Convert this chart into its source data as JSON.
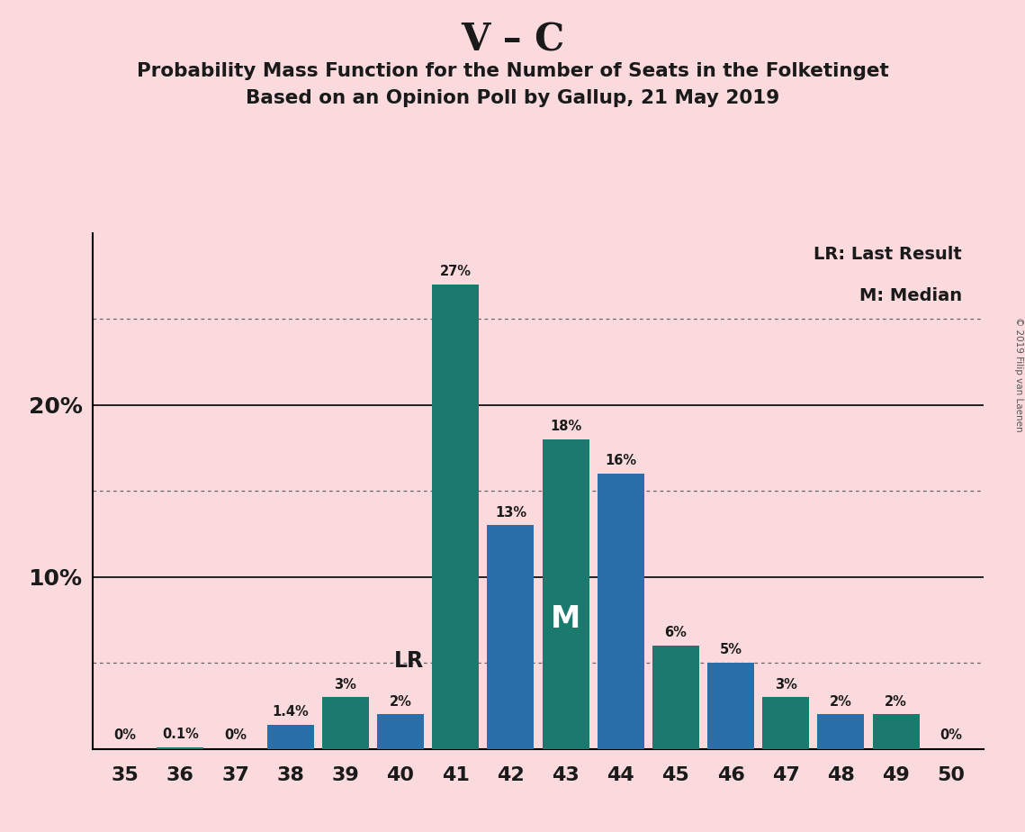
{
  "title": "V – C",
  "subtitle1": "Probability Mass Function for the Number of Seats in the Folketinget",
  "subtitle2": "Based on an Opinion Poll by Gallup, 21 May 2019",
  "copyright": "© 2019 Filip van Laenen",
  "legend_lr": "LR: Last Result",
  "legend_m": "M: Median",
  "categories": [
    35,
    36,
    37,
    38,
    39,
    40,
    41,
    42,
    43,
    44,
    45,
    46,
    47,
    48,
    49,
    50
  ],
  "values": [
    0,
    0.1,
    0,
    1.4,
    3,
    2,
    27,
    13,
    18,
    16,
    6,
    5,
    3,
    2,
    2,
    0
  ],
  "labels": [
    "0%",
    "0.1%",
    "0%",
    "1.4%",
    "3%",
    "2%",
    "27%",
    "13%",
    "18%",
    "16%",
    "6%",
    "5%",
    "3%",
    "2%",
    "2%",
    "0%"
  ],
  "bar_colors": [
    "#1a7a6e",
    "#1a7a6e",
    "#1a7a6e",
    "#2a6fa8",
    "#1a7a6e",
    "#2a6fa8",
    "#1a7a6e",
    "#2a6fa8",
    "#1a7a6e",
    "#2a6fa8",
    "#1a7a6e",
    "#2a6fa8",
    "#1a7a6e",
    "#2a6fa8",
    "#1a7a6e",
    "#1a7a6e"
  ],
  "background_color": "#fadadd",
  "lr_seat": 40,
  "median_seat": 43,
  "ylim": [
    0,
    30
  ],
  "solid_hlines": [
    10,
    20
  ],
  "dotted_hlines": [
    5,
    15,
    25
  ],
  "ytick_positions": [
    10,
    20
  ],
  "ytick_labels": [
    "10%",
    "20%"
  ]
}
